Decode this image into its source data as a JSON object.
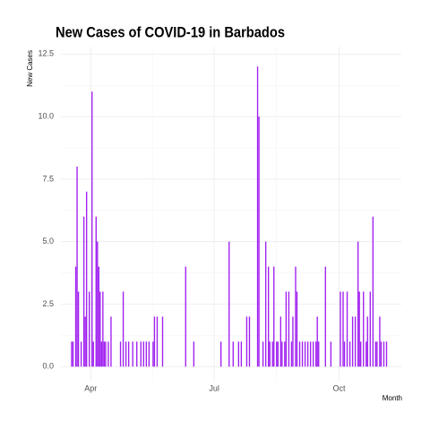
{
  "chart_data": {
    "type": "bar",
    "title": "New Cases of COVID-19 in Barbados",
    "x_label": "Month",
    "y_label": "New Cases",
    "color": "#a020f0",
    "grid": true,
    "ylim": [
      -0.6,
      12.8
    ],
    "yticks": [
      {
        "value": 0,
        "label": "0.0"
      },
      2.5,
      {
        "value": 5,
        "label": "5.0"
      },
      7.5,
      {
        "value": 10,
        "label": "10.0"
      },
      12.5
    ],
    "categories": [
      null,
      null,
      null,
      null,
      null,
      null,
      null,
      null,
      null,
      null,
      null,
      null,
      null,
      null,
      "Apr",
      null,
      null,
      null,
      null,
      null,
      null,
      null,
      null,
      null,
      null,
      null,
      null,
      null,
      null,
      null,
      null,
      null,
      null,
      null,
      null,
      null,
      null,
      null,
      null,
      null,
      null,
      null,
      null,
      null,
      null,
      null,
      null,
      null,
      null,
      null,
      null,
      null,
      null,
      null,
      null,
      null,
      null,
      null,
      null,
      null,
      null,
      null,
      null,
      null,
      null,
      null,
      null,
      null,
      null,
      null,
      null,
      null,
      null,
      null,
      null,
      null,
      null,
      null,
      null,
      null,
      null,
      null,
      null,
      null,
      null,
      null,
      null,
      null,
      null,
      null,
      null,
      null,
      null,
      null,
      null,
      null,
      null,
      null,
      null,
      null,
      null,
      null,
      null,
      null,
      null,
      "Jul",
      null,
      null,
      null,
      null,
      null,
      null,
      null,
      null,
      null,
      null,
      null,
      null,
      null,
      null,
      null,
      null,
      null,
      null,
      null,
      null,
      null,
      null,
      null,
      null,
      null,
      null,
      null,
      null,
      null,
      null,
      null,
      null,
      null,
      null,
      null,
      null,
      null,
      null,
      null,
      null,
      null,
      null,
      null,
      null,
      null,
      null,
      null,
      null,
      null,
      null,
      null,
      null,
      null,
      null,
      null,
      null,
      null,
      null,
      null,
      null,
      null,
      null,
      null,
      null,
      null,
      null,
      null,
      null,
      null,
      null,
      null,
      null,
      null,
      null,
      null,
      null,
      null,
      null,
      null,
      null,
      null,
      null,
      null,
      null,
      null,
      null,
      null,
      null,
      null,
      null,
      null,
      "Oct",
      null,
      null,
      null,
      null,
      null,
      null,
      null,
      null,
      null,
      null,
      null,
      null,
      null,
      null,
      null,
      null,
      null,
      null,
      null,
      null,
      null,
      null,
      null,
      null,
      null,
      null,
      null,
      null,
      null,
      null,
      null,
      null,
      null,
      null,
      null
    ],
    "values": [
      1,
      1,
      0,
      4,
      8,
      3,
      0,
      1,
      0,
      6,
      2,
      7,
      0,
      3,
      0,
      11,
      1,
      0,
      6,
      5,
      4,
      3,
      1,
      3,
      1,
      1,
      0,
      1,
      0,
      2,
      0,
      0,
      0,
      0,
      0,
      0,
      1,
      0,
      3,
      0,
      1,
      0,
      1,
      0,
      0,
      1,
      0,
      0,
      1,
      0,
      0,
      1,
      0,
      1,
      0,
      1,
      0,
      1,
      0,
      0,
      1,
      2,
      0,
      2,
      0,
      0,
      0,
      2,
      0,
      0,
      0,
      0,
      0,
      0,
      0,
      0,
      0,
      0,
      0,
      0,
      0,
      0,
      0,
      0,
      4,
      0,
      0,
      0,
      0,
      0,
      1,
      0,
      0,
      0,
      0,
      0,
      0,
      0,
      0,
      0,
      0,
      0,
      0,
      0,
      0,
      0,
      0,
      0,
      0,
      0,
      1,
      0,
      0,
      0,
      0,
      0,
      5,
      0,
      0,
      1,
      0,
      0,
      0,
      1,
      0,
      1,
      0,
      0,
      0,
      2,
      0,
      2,
      0,
      0,
      0,
      0,
      0,
      12,
      10,
      0,
      0,
      1,
      0,
      5,
      0,
      4,
      1,
      0,
      1,
      4,
      0,
      1,
      1,
      0,
      2,
      1,
      0,
      1,
      3,
      0,
      3,
      0,
      1,
      2,
      0,
      4,
      3,
      0,
      1,
      0,
      1,
      0,
      1,
      0,
      1,
      0,
      1,
      0,
      1,
      0,
      1,
      2,
      1,
      0,
      0,
      0,
      0,
      4,
      0,
      0,
      0,
      1,
      0,
      0,
      0,
      0,
      0,
      0,
      3,
      0,
      3,
      1,
      0,
      3,
      0,
      1,
      0,
      2,
      0,
      2,
      0,
      5,
      3,
      1,
      0,
      3,
      0,
      1,
      2,
      0,
      3,
      0,
      6,
      0,
      1,
      1,
      0,
      2,
      1,
      0,
      1,
      0,
      1
    ]
  }
}
